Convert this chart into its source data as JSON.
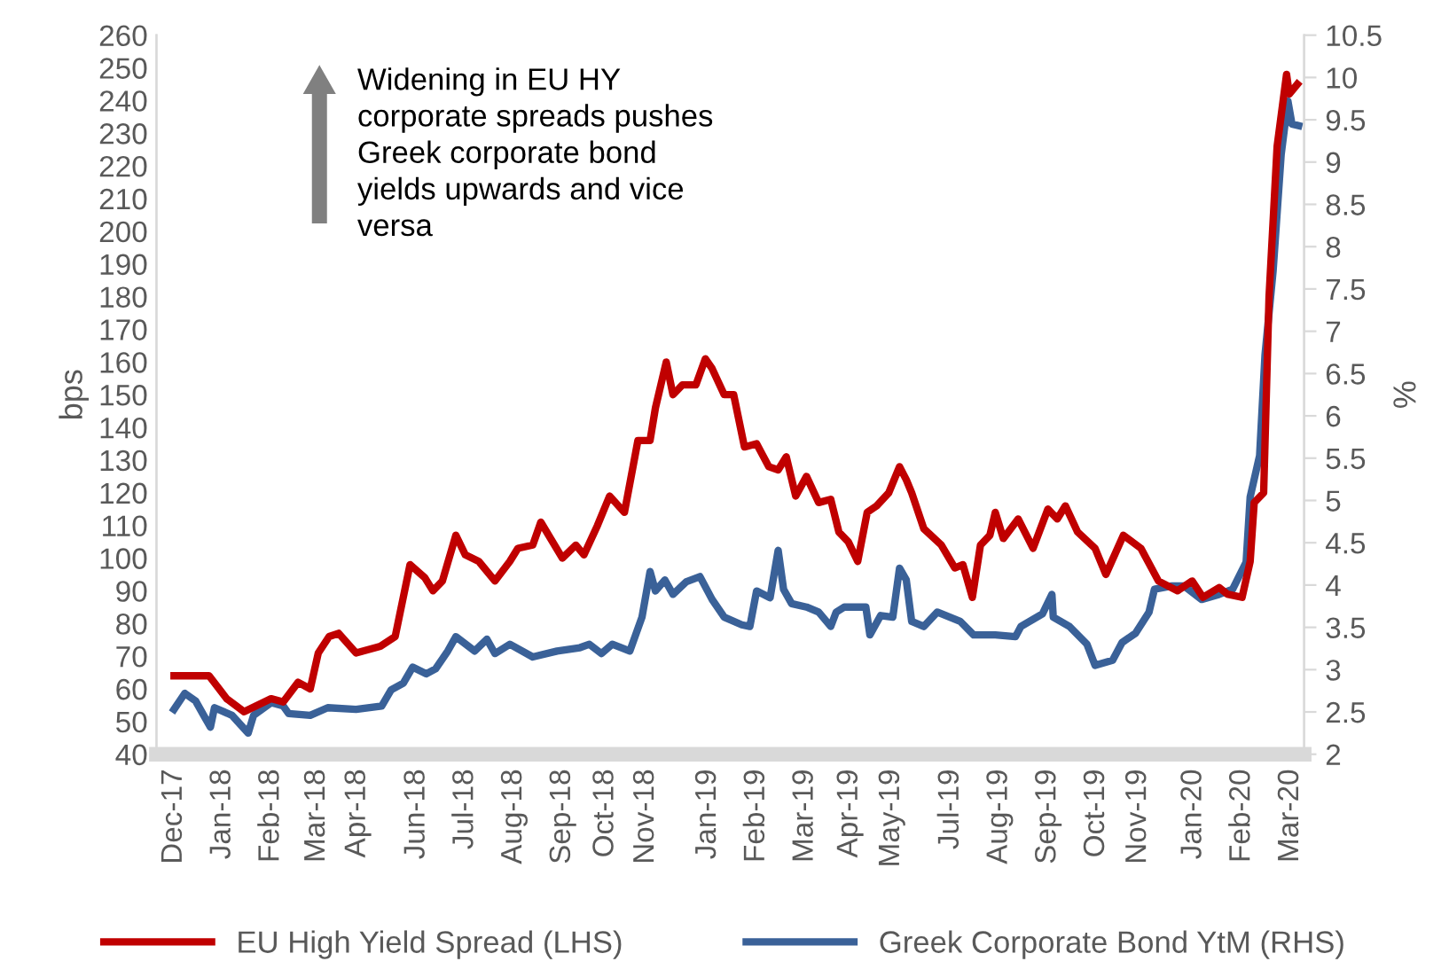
{
  "chart_data": {
    "type": "line",
    "ylabel": "bps",
    "y2label": "%",
    "annotations": [
      "Widening in EU HY\ncorporate spreads pushes\nGreek corporate bond\nyields upwards and vice\nversa"
    ],
    "ylim": [
      40,
      260
    ],
    "yticks": [
      40,
      50,
      60,
      70,
      80,
      90,
      100,
      110,
      120,
      130,
      140,
      150,
      160,
      170,
      180,
      190,
      200,
      210,
      220,
      230,
      240,
      250,
      260
    ],
    "y2lim": [
      2,
      10.5
    ],
    "y2ticks": [
      2,
      2.5,
      3,
      3.5,
      4,
      4.5,
      5,
      5.5,
      6,
      6.5,
      7,
      7.5,
      8,
      8.5,
      9,
      9.5,
      10,
      10.5
    ],
    "xlim": [
      "2017-12-02",
      "2020-04-01"
    ],
    "xticks": [
      {
        "value": "2017-12-15",
        "label": "Dec-17"
      },
      {
        "value": "2018-01-20",
        "label": "Jan-18"
      },
      {
        "value": "2018-02-25",
        "label": "Feb-18"
      },
      {
        "value": "2018-03-31",
        "label": "Mar-18"
      },
      {
        "value": "2018-04-30",
        "label": "Apr-18"
      },
      {
        "value": "2018-06-13",
        "label": "Jun-18"
      },
      {
        "value": "2018-07-19",
        "label": "Jul-18"
      },
      {
        "value": "2018-08-24",
        "label": "Aug-18"
      },
      {
        "value": "2018-09-29",
        "label": "Sep-18"
      },
      {
        "value": "2018-10-31",
        "label": "Oct-18"
      },
      {
        "value": "2018-11-30",
        "label": "Nov-18"
      },
      {
        "value": "2019-01-15",
        "label": "Jan-19"
      },
      {
        "value": "2019-02-20",
        "label": "Feb-19"
      },
      {
        "value": "2019-03-28",
        "label": "Mar-19"
      },
      {
        "value": "2019-04-30",
        "label": "Apr-19"
      },
      {
        "value": "2019-05-31",
        "label": "May-19"
      },
      {
        "value": "2019-07-14",
        "label": "Jul-19"
      },
      {
        "value": "2019-08-19",
        "label": "Aug-19"
      },
      {
        "value": "2019-09-24",
        "label": "Sep-19"
      },
      {
        "value": "2019-10-30",
        "label": "Oct-19"
      },
      {
        "value": "2019-11-30",
        "label": "Nov-19"
      },
      {
        "value": "2020-01-10",
        "label": "Jan-20"
      },
      {
        "value": "2020-02-15",
        "label": "Feb-20"
      },
      {
        "value": "2020-03-22",
        "label": "Mar-20"
      }
    ],
    "legend": "bottom",
    "grid": false,
    "series": [
      {
        "name": "EU High Yield Spread (LHS)",
        "color": "#c00000",
        "x": [
          "2017-12-15",
          "2018-01-10",
          "2018-01-23",
          "2018-02-05",
          "2018-02-25",
          "2018-03-06",
          "2018-03-17",
          "2018-03-26",
          "2018-04-01",
          "2018-04-09",
          "2018-04-16",
          "2018-04-29",
          "2018-05-17",
          "2018-05-28",
          "2018-06-03",
          "2018-06-08",
          "2018-06-19",
          "2018-06-25",
          "2018-07-02",
          "2018-07-12",
          "2018-07-19",
          "2018-07-29",
          "2018-08-10",
          "2018-08-21",
          "2018-08-27",
          "2018-09-07",
          "2018-09-13",
          "2018-09-29",
          "2018-10-09",
          "2018-10-15",
          "2018-10-25",
          "2018-11-03",
          "2018-11-14",
          "2018-11-24",
          "2018-12-03",
          "2018-12-07",
          "2018-12-15",
          "2018-12-20",
          "2018-12-27",
          "2019-01-06",
          "2019-01-13",
          "2019-01-18",
          "2019-01-27",
          "2019-02-03",
          "2019-02-11",
          "2019-02-20",
          "2019-03-01",
          "2019-03-08",
          "2019-03-14",
          "2019-03-21",
          "2019-03-29",
          "2019-04-07",
          "2019-04-16",
          "2019-04-22",
          "2019-04-29",
          "2019-05-06",
          "2019-05-13",
          "2019-05-20",
          "2019-05-29",
          "2019-06-06",
          "2019-06-11",
          "2019-06-15",
          "2019-06-24",
          "2019-07-07",
          "2019-07-17",
          "2019-07-23",
          "2019-07-30",
          "2019-08-05",
          "2019-08-12",
          "2019-08-16",
          "2019-08-22",
          "2019-09-02",
          "2019-09-13",
          "2019-09-24",
          "2019-10-01",
          "2019-10-07",
          "2019-10-16",
          "2019-10-29",
          "2019-11-06",
          "2019-11-19",
          "2019-12-02",
          "2019-12-15",
          "2019-12-29",
          "2020-01-09",
          "2020-01-17",
          "2020-01-29",
          "2020-02-04",
          "2020-02-15",
          "2020-02-21",
          "2020-02-24",
          "2020-03-02",
          "2020-03-06",
          "2020-03-12",
          "2020-03-19",
          "2020-03-21",
          "2020-03-27"
        ],
        "values": [
          64,
          64,
          57,
          53,
          57,
          56,
          62,
          60,
          71,
          76,
          77,
          71,
          73,
          76,
          88,
          98,
          94,
          90,
          93,
          107,
          101,
          99,
          93,
          99,
          103,
          104,
          111,
          100,
          104,
          101,
          110,
          119,
          114,
          136,
          136,
          146,
          160,
          150,
          153,
          153,
          161,
          158,
          150,
          150,
          134,
          135,
          128,
          127,
          131,
          119,
          125,
          117,
          118,
          108,
          105,
          99,
          114,
          116,
          120,
          128,
          124,
          120,
          109,
          104,
          97,
          98,
          88,
          104,
          107,
          114,
          106,
          112,
          103,
          115,
          112,
          116,
          108,
          103,
          95,
          107,
          103,
          93,
          90,
          93,
          88,
          91,
          89,
          88,
          99,
          117,
          120,
          180,
          226,
          248,
          242,
          245
        ]
      },
      {
        "name": "Greek Corporate Bond YtM (RHS)",
        "color": "#3a6198",
        "axis": "y2",
        "x": [
          "2017-12-15",
          "2017-12-23",
          "2017-12-31",
          "2018-01-06",
          "2018-01-11",
          "2018-01-14",
          "2018-01-27",
          "2018-02-08",
          "2018-02-12",
          "2018-02-25",
          "2018-03-06",
          "2018-03-10",
          "2018-03-26",
          "2018-04-08",
          "2018-04-29",
          "2018-05-18",
          "2018-05-25",
          "2018-06-03",
          "2018-06-10",
          "2018-06-20",
          "2018-06-27",
          "2018-07-06",
          "2018-07-12",
          "2018-07-26",
          "2018-08-04",
          "2018-08-10",
          "2018-08-21",
          "2018-09-07",
          "2018-09-25",
          "2018-10-12",
          "2018-10-19",
          "2018-10-28",
          "2018-11-05",
          "2018-11-18",
          "2018-11-27",
          "2018-12-03",
          "2018-12-07",
          "2018-12-14",
          "2018-12-20",
          "2018-12-30",
          "2019-01-09",
          "2019-01-18",
          "2019-01-27",
          "2019-02-09",
          "2019-02-15",
          "2019-02-20",
          "2019-03-02",
          "2019-03-08",
          "2019-03-12",
          "2019-03-18",
          "2019-03-29",
          "2019-04-07",
          "2019-04-16",
          "2019-04-20",
          "2019-04-26",
          "2019-05-12",
          "2019-05-15",
          "2019-05-23",
          "2019-06-01",
          "2019-06-06",
          "2019-06-11",
          "2019-06-15",
          "2019-06-24",
          "2019-07-04",
          "2019-07-21",
          "2019-07-31",
          "2019-08-16",
          "2019-08-31",
          "2019-09-04",
          "2019-09-20",
          "2019-09-27",
          "2019-09-28",
          "2019-10-10",
          "2019-10-23",
          "2019-10-29",
          "2019-11-11",
          "2019-11-18",
          "2019-11-28",
          "2019-12-08",
          "2019-12-12",
          "2019-12-25",
          "2020-01-03",
          "2020-01-16",
          "2020-01-29",
          "2020-02-08",
          "2020-02-18",
          "2020-02-21",
          "2020-02-28",
          "2020-03-03",
          "2020-03-09",
          "2020-03-15",
          "2020-03-20",
          "2020-03-23",
          "2020-03-28"
        ],
        "values": [
          2.53,
          2.72,
          2.63,
          2.46,
          2.32,
          2.55,
          2.46,
          2.25,
          2.46,
          2.61,
          2.57,
          2.48,
          2.46,
          2.55,
          2.53,
          2.57,
          2.76,
          2.84,
          3.03,
          2.95,
          3.01,
          3.22,
          3.39,
          3.22,
          3.36,
          3.19,
          3.3,
          3.15,
          3.22,
          3.26,
          3.3,
          3.19,
          3.3,
          3.22,
          3.62,
          4.16,
          3.93,
          4.06,
          3.89,
          4.04,
          4.1,
          3.83,
          3.62,
          3.53,
          3.51,
          3.93,
          3.85,
          4.41,
          3.95,
          3.78,
          3.74,
          3.68,
          3.51,
          3.68,
          3.74,
          3.74,
          3.41,
          3.64,
          3.62,
          4.2,
          4.06,
          3.57,
          3.51,
          3.68,
          3.57,
          3.41,
          3.41,
          3.39,
          3.51,
          3.66,
          3.89,
          3.62,
          3.51,
          3.3,
          3.05,
          3.11,
          3.32,
          3.43,
          3.68,
          3.95,
          3.99,
          3.99,
          3.83,
          3.89,
          3.95,
          4.27,
          5.04,
          5.53,
          6.72,
          7.71,
          9.09,
          9.72,
          9.45,
          9.43
        ]
      }
    ]
  }
}
